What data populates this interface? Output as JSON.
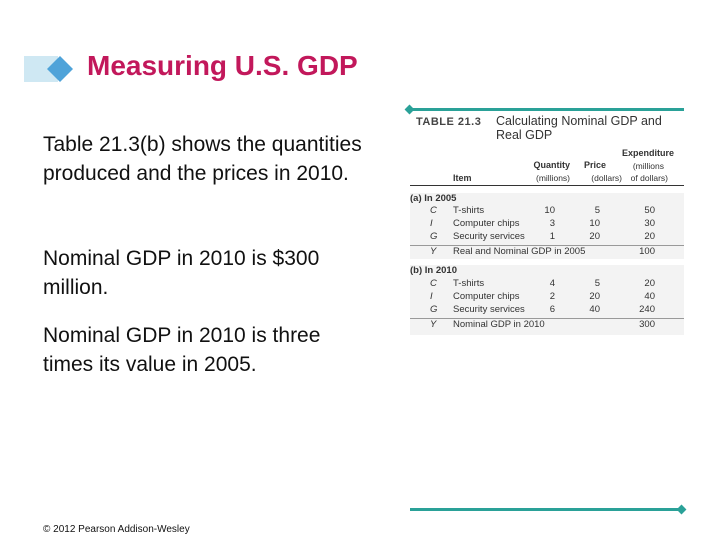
{
  "slide": {
    "title": "Measuring U.S. GDP",
    "paragraphs": [
      "Table 21.3(b) shows the quantities produced and the prices in 2010.",
      "Nominal GDP in 2010 is $300 million.",
      "Nominal GDP in 2010 is three times its value in 2005."
    ],
    "footer": "© 2012 Pearson Addison-Wesley"
  },
  "table": {
    "label": "TABLE 21.3",
    "caption": "Calculating Nominal GDP and Real GDP",
    "headers": {
      "item": "Item",
      "quantity": "Quantity",
      "quantity_unit": "(millions)",
      "price": "Price",
      "price_unit": "(dollars)",
      "expenditure": "Expenditure",
      "expenditure_unit1": "(millions",
      "expenditure_unit2": "of dollars)"
    },
    "section_a": {
      "label": "(a) In 2005",
      "rows": [
        {
          "sym": "C",
          "item": "T-shirts",
          "qty": "10",
          "price": "5",
          "exp": "50"
        },
        {
          "sym": "I",
          "item": "Computer chips",
          "qty": "3",
          "price": "10",
          "exp": "30"
        },
        {
          "sym": "G",
          "item": "Security services",
          "qty": "1",
          "price": "20",
          "exp": "20"
        }
      ],
      "total": {
        "sym": "Y",
        "item": "Real and Nominal GDP in 2005",
        "exp": "100"
      }
    },
    "section_b": {
      "label": "(b) In 2010",
      "rows": [
        {
          "sym": "C",
          "item": "T-shirts",
          "qty": "4",
          "price": "5",
          "exp": "20"
        },
        {
          "sym": "I",
          "item": "Computer chips",
          "qty": "2",
          "price": "20",
          "exp": "40"
        },
        {
          "sym": "G",
          "item": "Security services",
          "qty": "6",
          "price": "40",
          "exp": "240"
        }
      ],
      "total": {
        "sym": "Y",
        "item": "Nominal GDP in 2010",
        "exp": "300"
      }
    }
  },
  "colors": {
    "title": "#c2185b",
    "accent": "#2aa198",
    "title_deco_light": "#cfe8f3",
    "title_deco_diamond": "#4fa3d9"
  }
}
